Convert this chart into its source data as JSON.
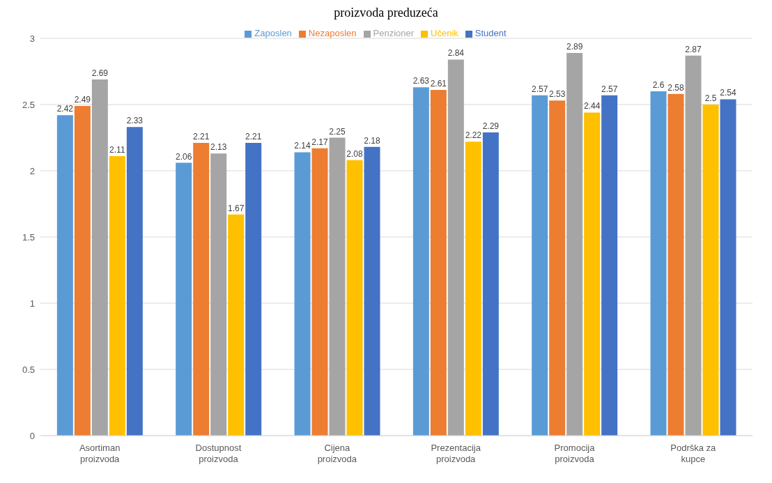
{
  "chart_data": {
    "type": "bar",
    "title": "proizvoda preduzeća",
    "categories": [
      "Asortiman proizvoda",
      "Dostupnost proizvoda",
      "Cijena proizvoda",
      "Prezentacija proizvoda",
      "Promocija proizvoda",
      "Podrška za kupce"
    ],
    "series": [
      {
        "name": "Zaposlen",
        "color": "#5b9bd5",
        "values": [
          2.42,
          2.06,
          2.14,
          2.63,
          2.57,
          2.6
        ]
      },
      {
        "name": "Nezaposlen",
        "color": "#ed7d31",
        "values": [
          2.49,
          2.21,
          2.17,
          2.61,
          2.53,
          2.58
        ]
      },
      {
        "name": "Penzioner",
        "color": "#a5a5a5",
        "values": [
          2.69,
          2.13,
          2.25,
          2.84,
          2.89,
          2.87
        ]
      },
      {
        "name": "Učenik",
        "color": "#ffc000",
        "values": [
          2.11,
          1.67,
          2.08,
          2.22,
          2.44,
          2.5
        ]
      },
      {
        "name": "Student",
        "color": "#4472c4",
        "values": [
          2.33,
          2.21,
          2.18,
          2.29,
          2.57,
          2.54
        ]
      }
    ],
    "ylim": [
      0,
      3
    ],
    "yticks": [
      0,
      0.5,
      1,
      1.5,
      2,
      2.5,
      3
    ],
    "grid": "y",
    "legend": "top",
    "data_labels": true
  }
}
